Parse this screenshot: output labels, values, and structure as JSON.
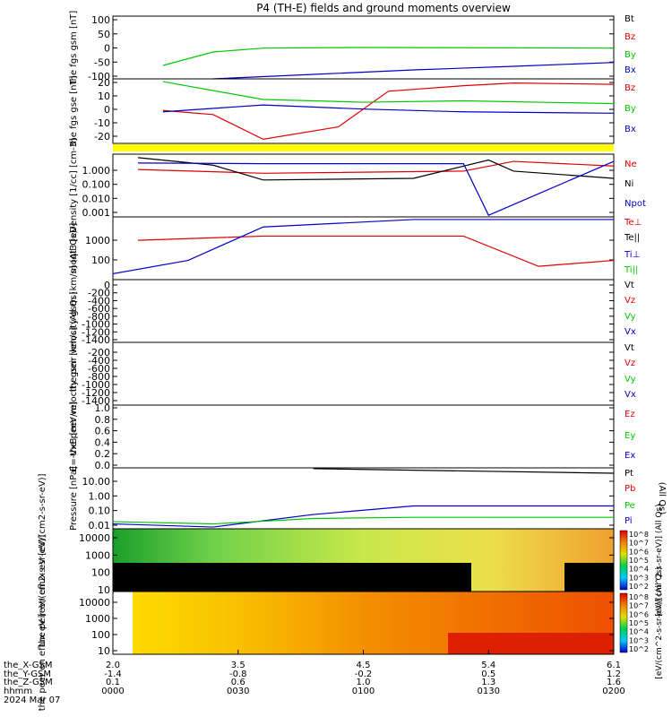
{
  "title": "P4 (TH-E) fields and ground moments overview",
  "colors": {
    "black": "#000000",
    "red": "#e00000",
    "green": "#00c800",
    "blue": "#0000c8",
    "yellow": "#ffff00"
  },
  "chart_data": [
    {
      "type": "line",
      "ylabel": "the fgs gsm [nT]",
      "yticks": [
        "100",
        "50",
        "0",
        "-50",
        "-100"
      ],
      "ylim": [
        -100,
        110
      ],
      "legend": [
        "Bt",
        "Bz",
        "By",
        "Bx"
      ],
      "series": [
        {
          "name": "By",
          "color": "#00c800",
          "x": [
            0.1,
            0.2,
            0.3,
            0.5,
            1.0
          ],
          "y": [
            -55,
            -10,
            3,
            5,
            3
          ]
        },
        {
          "name": "Bx",
          "color": "#0000c8",
          "x": [
            0.2,
            0.4,
            0.6,
            0.8,
            1.0
          ],
          "y": [
            -100,
            -85,
            -70,
            -58,
            -45
          ]
        }
      ]
    },
    {
      "type": "line",
      "ylabel": "the fgs gse [nT]",
      "yticks": [
        "20",
        "10",
        "0",
        "-10",
        "-20"
      ],
      "ylim": [
        -25,
        22
      ],
      "legend": [
        "Bz",
        "By",
        "Bx"
      ],
      "series": [
        {
          "name": "Bz",
          "color": "#e00000",
          "x": [
            0.1,
            0.2,
            0.3,
            0.45,
            0.55,
            0.7,
            0.8,
            1.0
          ],
          "y": [
            -1,
            -4,
            -22,
            -13,
            13,
            17,
            19,
            18
          ]
        },
        {
          "name": "By",
          "color": "#00c800",
          "x": [
            0.1,
            0.3,
            0.5,
            0.7,
            1.0
          ],
          "y": [
            20,
            7,
            5,
            6,
            4
          ]
        },
        {
          "name": "Bx",
          "color": "#0000c8",
          "x": [
            0.1,
            0.3,
            0.5,
            0.7,
            1.0
          ],
          "y": [
            -2,
            3,
            0,
            -2,
            -3
          ]
        }
      ]
    },
    {
      "type": "line",
      "ylabel": "Density [1/cc] [cm-3]",
      "yticks": [
        "1.000",
        "0.100",
        "0.010",
        "0.001"
      ],
      "ylim": [
        0.0008,
        4
      ],
      "legend": [
        "Ne",
        "Ni",
        "Npot"
      ],
      "series": [
        {
          "name": "Ne",
          "color": "#e00000",
          "x": [
            0.05,
            0.3,
            0.7,
            0.8,
            1.0
          ],
          "y": [
            0.5,
            0.3,
            0.4,
            1.5,
            0.8
          ]
        },
        {
          "name": "Ni",
          "color": "#000000",
          "x": [
            0.05,
            0.2,
            0.3,
            0.6,
            0.75,
            0.8,
            1.0
          ],
          "y": [
            2.5,
            0.9,
            0.12,
            0.15,
            1.8,
            0.4,
            0.15
          ]
        },
        {
          "name": "Npot",
          "color": "#0000c8",
          "x": [
            0.05,
            0.3,
            0.7,
            0.75,
            1.0
          ],
          "y": [
            1.2,
            1.1,
            1.1,
            0.001,
            1.5
          ]
        }
      ]
    },
    {
      "type": "line",
      "ylabel": "moqt3 [eV]",
      "yticks": [
        "1000",
        "100"
      ],
      "ylim": [
        40,
        3000
      ],
      "legend": [
        "Te⊥",
        "Te||",
        "Ti⊥",
        "Ti||"
      ],
      "series": [
        {
          "name": "Te",
          "color": "#e00000",
          "x": [
            0.05,
            0.3,
            0.7,
            0.85,
            1.0
          ],
          "y": [
            600,
            800,
            800,
            100,
            150
          ]
        },
        {
          "name": "Ti",
          "color": "#0000c8",
          "x": [
            0.0,
            0.15,
            0.3,
            0.6,
            1.0
          ],
          "y": [
            60,
            150,
            1500,
            2500,
            2500
          ]
        }
      ]
    },
    {
      "type": "line",
      "ylabel": "the peir velocity gsm [km/s] (All Qs)",
      "yticks": [
        "0",
        "-200",
        "-400",
        "-600",
        "-800",
        "-1000",
        "-1200",
        "-1400"
      ],
      "ylim": [
        -1450,
        50
      ],
      "legend": [
        "Vt",
        "Vz",
        "Vy",
        "Vx"
      ],
      "series": []
    },
    {
      "type": "line",
      "ylabel": "the peer velocity gsm [km/s] (All Qs)",
      "yticks": [
        "-200",
        "-400",
        "-600",
        "-800",
        "-1000",
        "-1200",
        "-1400"
      ],
      "ylim": [
        -1450,
        -100
      ],
      "legend": [
        "Vt",
        "Vz",
        "Vy",
        "Vx"
      ],
      "series": []
    },
    {
      "type": "line",
      "ylabel": "E=-VxB [mV/m]",
      "yticks": [
        "1.0",
        "0.8",
        "0.6",
        "0.4",
        "0.2",
        "0.0"
      ],
      "ylim": [
        0,
        1
      ],
      "legend": [
        "Ez",
        "Ey",
        "Ex"
      ],
      "series": []
    },
    {
      "type": "line",
      "ylabel": "Pressure [nPa]",
      "yticks": [
        "10.00",
        "1.00",
        "0.10",
        "0.01"
      ],
      "ylim": [
        0.008,
        20
      ],
      "legend": [
        "Pt",
        "Pb",
        "Pe",
        "Pi"
      ],
      "legend_note": "(All Qs)",
      "series": [
        {
          "name": "Pt",
          "color": "#000000",
          "x": [
            0.4,
            1.0
          ],
          "y": [
            18,
            10
          ]
        },
        {
          "name": "Pi",
          "color": "#0000c8",
          "x": [
            0.0,
            0.2,
            0.4,
            0.6,
            1.0
          ],
          "y": [
            0.015,
            0.01,
            0.05,
            0.15,
            0.15
          ]
        },
        {
          "name": "Pe",
          "color": "#00c800",
          "x": [
            0.0,
            0.2,
            0.4,
            0.6,
            1.0
          ],
          "y": [
            0.02,
            0.015,
            0.03,
            0.035,
            0.035
          ]
        }
      ]
    },
    {
      "type": "heatmap",
      "ylabel": "the peir en eflux eV [eV/(cm2-s-sr-eV)]",
      "yticks": [
        "10000",
        "1000",
        "100",
        "10"
      ],
      "colorbar_ticks": [
        "10^8",
        "10^7",
        "10^6",
        "10^5",
        "10^4",
        "10^3",
        "10^2"
      ],
      "colorbar_label": "[eV/(cm^2-s-sr-eV)] (All Qs)"
    },
    {
      "type": "heatmap",
      "ylabel": "the peer en eflux eV [eV/(cm2-s-sr-eV)]",
      "yticks": [
        "10000",
        "1000",
        "100",
        "10"
      ],
      "colorbar_ticks": [
        "10^8",
        "10^7",
        "10^6",
        "10^5",
        "10^4",
        "10^3",
        "10^2"
      ],
      "colorbar_label": "[eV/(cm^2-s-sr-eV)] (All Qs)"
    }
  ],
  "xaxis": {
    "row_labels": [
      "the_X-GSM",
      "the_Y-GSM",
      "the_Z-GSM",
      "hhmm",
      "2024 Mar 07"
    ],
    "ticks": [
      {
        "x": "2.0",
        "y": "-1.4",
        "z": "0.1",
        "t": "0000"
      },
      {
        "x": "3.5",
        "y": "-0.8",
        "z": "0.6",
        "t": "0030"
      },
      {
        "x": "4.5",
        "y": "-0.2",
        "z": "1.0",
        "t": "0100"
      },
      {
        "x": "5.4",
        "y": "0.5",
        "z": "1.3",
        "t": "0130"
      },
      {
        "x": "6.1",
        "y": "1.2",
        "z": "1.6",
        "t": "0200"
      }
    ]
  }
}
